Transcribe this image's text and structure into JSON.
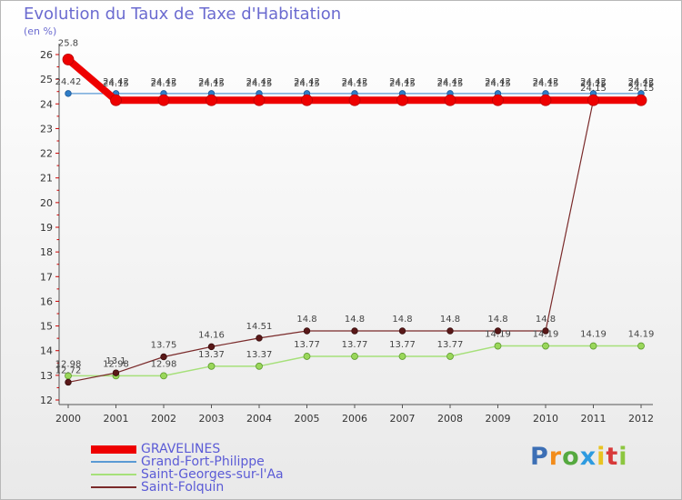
{
  "chart_data": {
    "type": "line",
    "title": "Evolution du Taux de Taxe d'Habitation",
    "ylabel": "(en %)",
    "xlabel": "",
    "ylim": [
      12,
      26
    ],
    "yticks": [
      12,
      13,
      14,
      15,
      16,
      17,
      18,
      19,
      20,
      21,
      22,
      23,
      24,
      25,
      26
    ],
    "categories": [
      "2000",
      "2001",
      "2002",
      "2003",
      "2004",
      "2005",
      "2006",
      "2007",
      "2008",
      "2009",
      "2010",
      "2011",
      "2012"
    ],
    "series": [
      {
        "name": "GRAVELINES",
        "color": "#ee0000",
        "values": [
          25.8,
          24.15,
          24.15,
          24.15,
          24.15,
          24.15,
          24.15,
          24.15,
          24.15,
          24.15,
          24.15,
          24.15,
          24.15
        ],
        "labels": [
          "25.8",
          "24.15",
          "24.15",
          "24.15",
          "24.15",
          "24.15",
          "24.15",
          "24.15",
          "24.15",
          "24.15",
          "24.15",
          "24.15",
          "24.15"
        ]
      },
      {
        "name": "Grand-Fort-Philippe",
        "color": "#5a9ad4",
        "values": [
          24.42,
          24.42,
          24.42,
          24.42,
          24.42,
          24.42,
          24.42,
          24.42,
          24.42,
          24.42,
          24.42,
          24.42,
          24.42
        ],
        "labels": [
          "24.42",
          "24.42",
          "24.42",
          "24.42",
          "24.42",
          "24.42",
          "24.42",
          "24.42",
          "24.42",
          "24.42",
          "24.42",
          "24.42",
          "24.42"
        ]
      },
      {
        "name": "Saint-Georges-sur-l'Aa",
        "color": "#a6e07a",
        "values": [
          12.98,
          12.98,
          12.98,
          13.37,
          13.37,
          13.77,
          13.77,
          13.77,
          13.77,
          14.19,
          14.19,
          14.19,
          14.19
        ],
        "labels": [
          "12.98",
          "12.98",
          "12.98",
          "13.37",
          "13.37",
          "13.77",
          "13.77",
          "13.77",
          "13.77",
          "14.19",
          "14.19",
          "14.19",
          "14.19"
        ]
      },
      {
        "name": "Saint-Folquin",
        "color": "#7a2a2a",
        "values": [
          12.72,
          13.1,
          13.75,
          14.16,
          14.51,
          14.8,
          14.8,
          14.8,
          14.8,
          14.8,
          14.8,
          24.15,
          24.15
        ],
        "labels": [
          "12.72",
          "13.1",
          "13.75",
          "14.16",
          "14.51",
          "14.8",
          "14.8",
          "14.8",
          "14.8",
          "14.8",
          "14.8",
          "24.15",
          "24.15"
        ]
      }
    ]
  },
  "legend": [
    {
      "label": "GRAVELINES",
      "color": "#ee0000"
    },
    {
      "label": "Grand-Fort-Philippe",
      "color": "#5a9ad4"
    },
    {
      "label": "Saint-Georges-sur-l'Aa",
      "color": "#a6e07a"
    },
    {
      "label": "Saint-Folquin",
      "color": "#7a2a2a"
    }
  ],
  "logo": {
    "text": "Proxiti"
  }
}
